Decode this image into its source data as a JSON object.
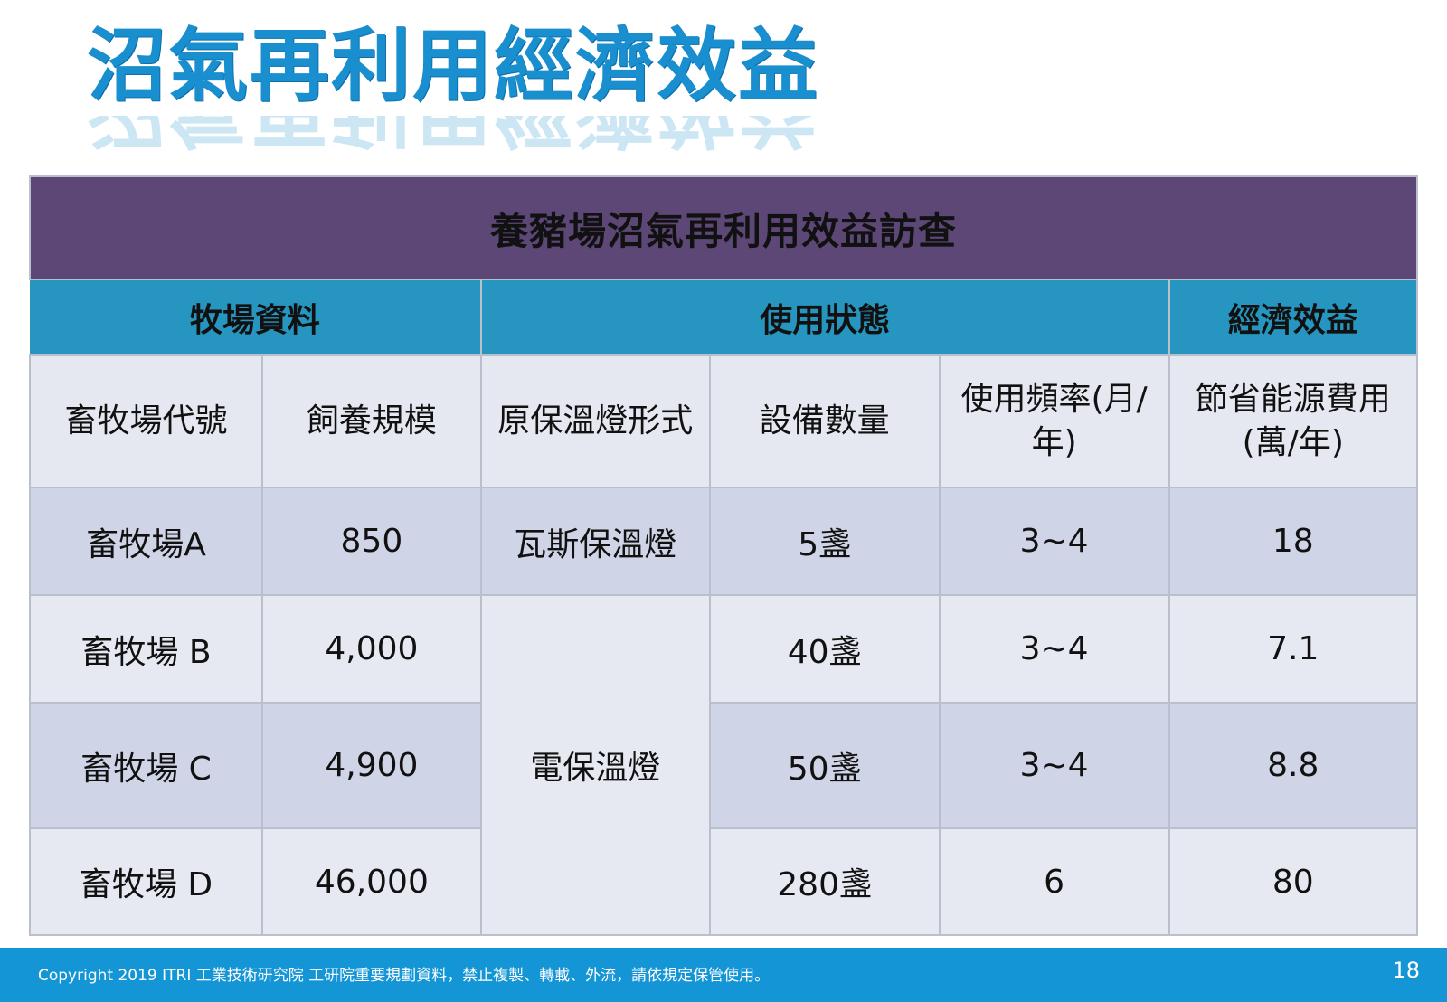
{
  "slide": {
    "title": "沼氣再利用經濟效益"
  },
  "table": {
    "banner": "養豬場沼氣再利用效益訪查",
    "groups": [
      "牧場資料",
      "使用狀態",
      "經濟效益"
    ],
    "columns": [
      "畜牧場代號",
      "飼養規模",
      "原保溫燈形式",
      "設備數量",
      "使用頻率(月/年)",
      "節省能源費用(萬/年)"
    ],
    "rows": [
      [
        "畜牧場A",
        "850",
        "瓦斯保溫燈",
        "5盞",
        "3~4",
        "18"
      ],
      [
        "畜牧場 B",
        "4,000",
        "電保溫燈",
        "40盞",
        "3~4",
        "7.1"
      ],
      [
        "畜牧場 C",
        "4,900",
        "電保溫燈",
        "50盞",
        "3~4",
        "8.8"
      ],
      [
        "畜牧場 D",
        "46,000",
        "電保溫燈",
        "280盞",
        "6",
        "80"
      ]
    ]
  },
  "footer": {
    "copyright": "Copyright 2019  ITRI 工業技術研究院  工研院重要規劃資料，禁止複製、轉載、外流，請依規定保管使用。",
    "page_number": "18"
  }
}
